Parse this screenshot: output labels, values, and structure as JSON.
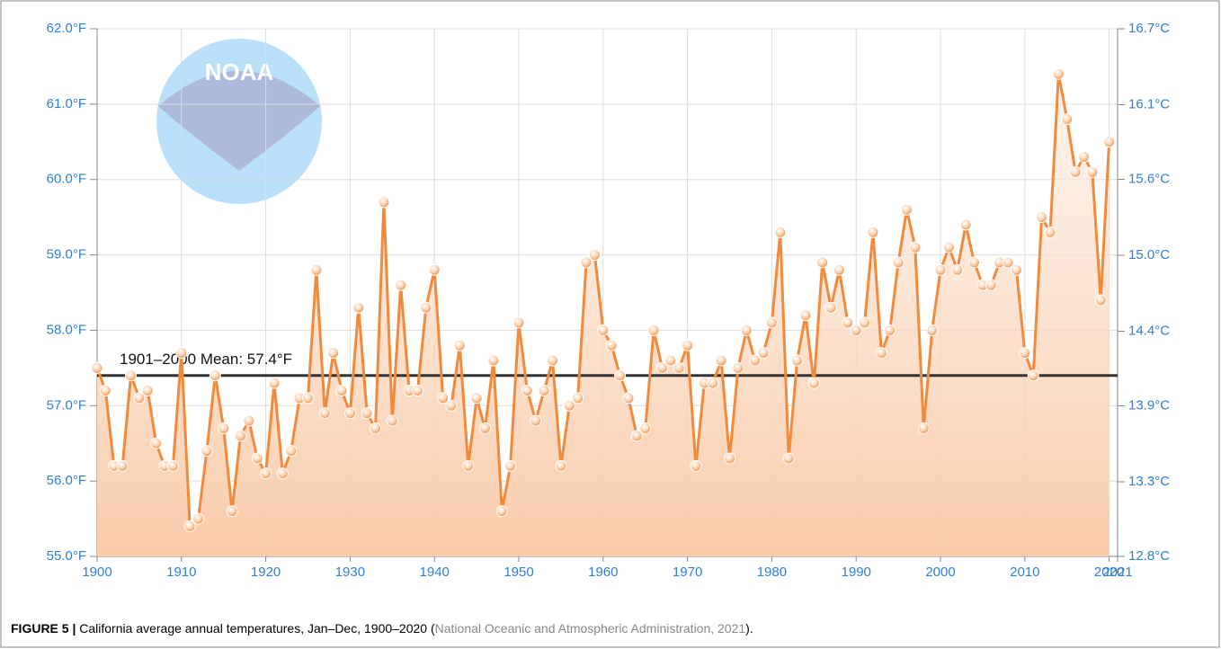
{
  "chart_data": {
    "type": "line",
    "logo_text": "NOAA",
    "x": [
      1900,
      1901,
      1902,
      1903,
      1904,
      1905,
      1906,
      1907,
      1908,
      1909,
      1910,
      1911,
      1912,
      1913,
      1914,
      1915,
      1916,
      1917,
      1918,
      1919,
      1920,
      1921,
      1922,
      1923,
      1924,
      1925,
      1926,
      1927,
      1928,
      1929,
      1930,
      1931,
      1932,
      1933,
      1934,
      1935,
      1936,
      1937,
      1938,
      1939,
      1940,
      1941,
      1942,
      1943,
      1944,
      1945,
      1946,
      1947,
      1948,
      1949,
      1950,
      1951,
      1952,
      1953,
      1954,
      1955,
      1956,
      1957,
      1958,
      1959,
      1960,
      1961,
      1962,
      1963,
      1964,
      1965,
      1966,
      1967,
      1968,
      1969,
      1970,
      1971,
      1972,
      1973,
      1974,
      1975,
      1976,
      1977,
      1978,
      1979,
      1980,
      1981,
      1982,
      1983,
      1984,
      1985,
      1986,
      1987,
      1988,
      1989,
      1990,
      1991,
      1992,
      1993,
      1994,
      1995,
      1996,
      1997,
      1998,
      1999,
      2000,
      2001,
      2002,
      2003,
      2004,
      2005,
      2006,
      2007,
      2008,
      2009,
      2010,
      2011,
      2012,
      2013,
      2014,
      2015,
      2016,
      2017,
      2018,
      2019,
      2020
    ],
    "values": [
      57.5,
      57.2,
      56.2,
      56.2,
      57.4,
      57.1,
      57.2,
      56.5,
      56.2,
      56.2,
      57.7,
      55.4,
      55.5,
      56.4,
      57.4,
      56.7,
      55.6,
      56.6,
      56.8,
      56.3,
      56.1,
      57.3,
      56.1,
      56.4,
      57.1,
      57.1,
      58.8,
      56.9,
      57.7,
      57.2,
      56.9,
      58.3,
      56.9,
      56.7,
      59.7,
      56.8,
      58.6,
      57.2,
      57.2,
      58.3,
      58.8,
      57.1,
      57.0,
      57.8,
      56.2,
      57.1,
      56.7,
      57.6,
      55.6,
      56.2,
      58.1,
      57.2,
      56.8,
      57.2,
      57.6,
      56.2,
      57.0,
      57.1,
      58.9,
      59.0,
      58.0,
      57.8,
      57.4,
      57.1,
      56.6,
      56.7,
      58.0,
      57.5,
      57.6,
      57.5,
      57.8,
      56.2,
      57.3,
      57.3,
      57.6,
      56.3,
      57.5,
      58.0,
      57.6,
      57.7,
      58.1,
      59.3,
      56.3,
      57.6,
      58.2,
      57.3,
      58.9,
      58.3,
      58.8,
      58.1,
      58.0,
      58.1,
      59.3,
      57.7,
      58.0,
      58.9,
      59.6,
      59.1,
      56.7,
      58.0,
      58.8,
      59.1,
      58.8,
      59.4,
      58.9,
      58.6,
      58.6,
      58.9,
      58.9,
      58.8,
      57.7,
      57.4,
      59.5,
      59.3,
      61.4,
      60.8,
      60.1,
      60.3,
      60.1,
      58.4,
      60.5
    ],
    "color": "#f28a3c",
    "area_color": "#fbd3b5",
    "xlim": [
      1900,
      2021
    ],
    "xticks": [
      1900,
      1910,
      1920,
      1930,
      1940,
      1950,
      1960,
      1970,
      1980,
      1990,
      2000,
      2010,
      2020,
      2021
    ],
    "ylim": [
      55,
      62
    ],
    "yticks": [
      {
        "value": 55,
        "label": "55.0°F"
      },
      {
        "value": 56,
        "label": "56.0°F"
      },
      {
        "value": 57,
        "label": "57.0°F"
      },
      {
        "value": 58,
        "label": "58.0°F"
      },
      {
        "value": 59,
        "label": "59.0°F"
      },
      {
        "value": 60,
        "label": "60.0°F"
      },
      {
        "value": 61,
        "label": "61.0°F"
      },
      {
        "value": 62,
        "label": "62.0°F"
      }
    ],
    "y2lim": [
      12.78,
      16.67
    ],
    "y2ticks": [
      {
        "value": 12.78,
        "label": "12.8°C"
      },
      {
        "value": 13.33,
        "label": "13.3°C"
      },
      {
        "value": 13.89,
        "label": "13.9°C"
      },
      {
        "value": 14.44,
        "label": "14.4°C"
      },
      {
        "value": 15,
        "label": "15.0°C"
      },
      {
        "value": 15.56,
        "label": "15.6°C"
      },
      {
        "value": 16.11,
        "label": "16.1°C"
      },
      {
        "value": 16.67,
        "label": "16.7°C"
      }
    ],
    "mean": {
      "value": 57.4,
      "label": "1901–2000 Mean: 57.4°F"
    },
    "grid": true
  },
  "caption": {
    "label": "FIGURE 5 |",
    "text": "California average annual temperatures, Jan–Dec, 1900–2020 (",
    "citation": "National Oceanic and Atmospheric Administration, 2021",
    "end": ")."
  }
}
